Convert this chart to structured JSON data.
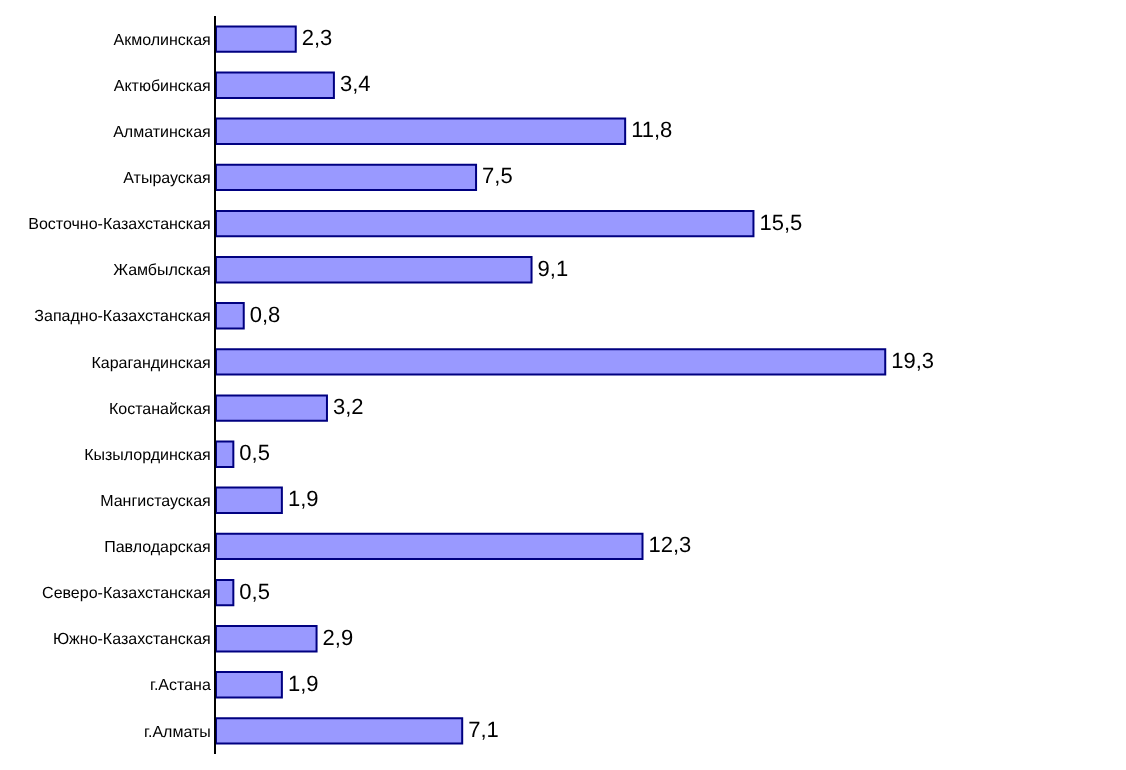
{
  "chart_data": {
    "type": "bar",
    "orientation": "horizontal",
    "categories": [
      "Акмолинская",
      "Актюбинская",
      "Алматинская",
      "Атырауская",
      "Восточно-Казахстанская",
      "Жамбылская",
      "Западно-Казахстанская",
      "Карагандинская",
      "Костанайская",
      "Кызылординская",
      "Мангистауская",
      "Павлодарская",
      "Северо-Казахстанская",
      "Южно-Казахстанская",
      "г.Астана",
      "г.Алматы"
    ],
    "values": [
      2.3,
      3.4,
      11.8,
      7.5,
      15.5,
      9.1,
      0.8,
      19.3,
      3.2,
      0.5,
      1.9,
      12.3,
      0.5,
      2.9,
      1.9,
      7.1
    ],
    "value_labels": [
      "2,3",
      "3,4",
      "11,8",
      "7,5",
      "15,5",
      "9,1",
      "0,8",
      "19,3",
      "3,2",
      "0,5",
      "1,9",
      "12,3",
      "0,5",
      "2,9",
      "1,9",
      "7,1"
    ],
    "color": "#9999ff",
    "legend": false
  }
}
